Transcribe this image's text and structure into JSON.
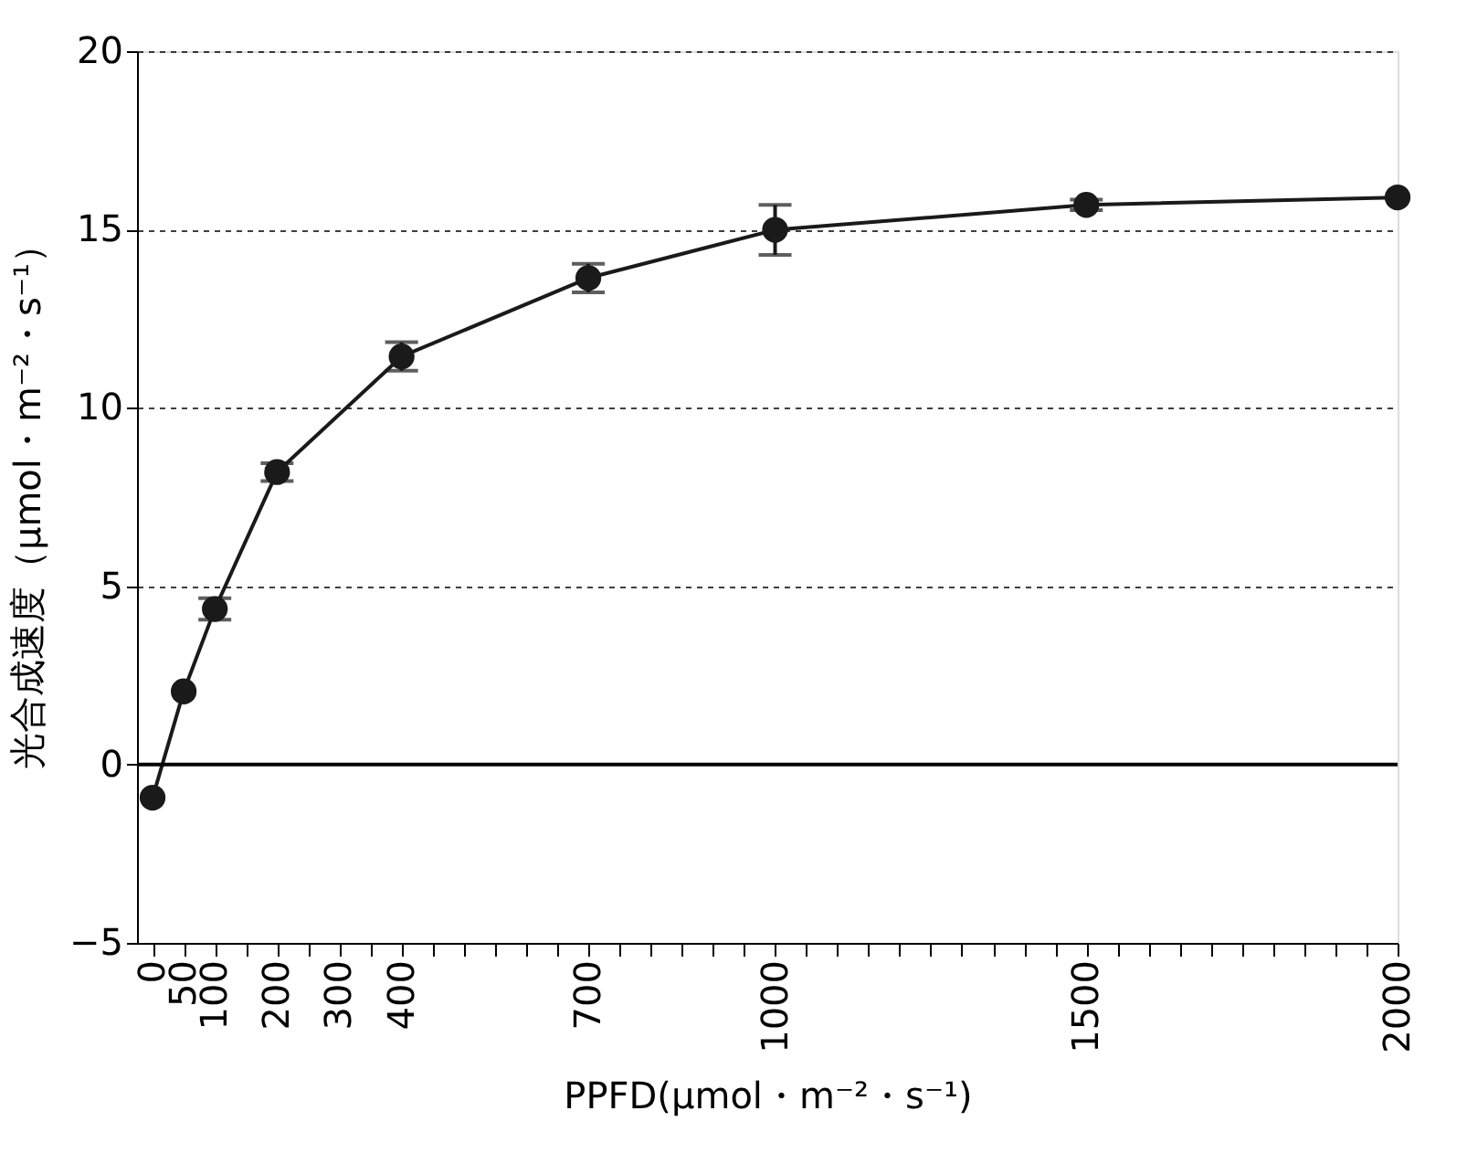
{
  "chart_data": {
    "type": "line",
    "xlabel": "PPFD(μmol・m⁻²・s⁻¹)",
    "ylabel": "光合成速度（μmol・m⁻²・s⁻¹）",
    "x": [
      0,
      50,
      100,
      200,
      400,
      700,
      1000,
      1500,
      2000
    ],
    "series": [
      {
        "color": "#1a1a1a",
        "values": [
          -0.93,
          2.05,
          4.36,
          8.2,
          11.44,
          13.64,
          14.99,
          15.69,
          15.9
        ],
        "errors": [
          null,
          null,
          0.3,
          0.25,
          0.4,
          0.4,
          0.7,
          0.15,
          null
        ]
      }
    ],
    "xlim": [
      -25,
      2000
    ],
    "xticks": [
      0,
      50,
      100,
      {
        "value": 150,
        "label": null
      },
      200,
      {
        "value": 250,
        "label": null
      },
      300,
      {
        "value": 350,
        "label": null
      },
      400,
      {
        "value": 450,
        "label": null
      },
      {
        "value": 500,
        "label": null
      },
      {
        "value": 550,
        "label": null
      },
      {
        "value": 600,
        "label": null
      },
      {
        "value": 650,
        "label": null
      },
      700,
      {
        "value": 750,
        "label": null
      },
      {
        "value": 800,
        "label": null
      },
      {
        "value": 850,
        "label": null
      },
      {
        "value": 900,
        "label": null
      },
      {
        "value": 950,
        "label": null
      },
      1000,
      {
        "value": 1050,
        "label": null
      },
      {
        "value": 1100,
        "label": null
      },
      {
        "value": 1150,
        "label": null
      },
      {
        "value": 1200,
        "label": null
      },
      {
        "value": 1250,
        "label": null
      },
      {
        "value": 1300,
        "label": null
      },
      {
        "value": 1350,
        "label": null
      },
      {
        "value": 1400,
        "label": null
      },
      {
        "value": 1450,
        "label": null
      },
      1500,
      {
        "value": 1550,
        "label": null
      },
      {
        "value": 1600,
        "label": null
      },
      {
        "value": 1650,
        "label": null
      },
      {
        "value": 1700,
        "label": null
      },
      {
        "value": 1750,
        "label": null
      },
      {
        "value": 1800,
        "label": null
      },
      {
        "value": 1850,
        "label": null
      },
      {
        "value": 1900,
        "label": null
      },
      {
        "value": 1950,
        "label": null
      },
      2000
    ],
    "ylim": [
      -5,
      20
    ],
    "yticks": [
      -5,
      0,
      5,
      10,
      15,
      20
    ],
    "grid": "y",
    "marker": "circle",
    "line_style": "solid",
    "ref_lines": [
      {
        "axis": "y",
        "value": 0,
        "color": "#000000",
        "line_style": "solid"
      }
    ]
  }
}
